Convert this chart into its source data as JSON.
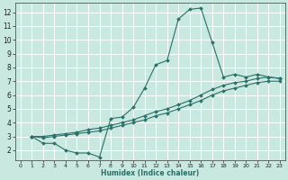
{
  "xlabel": "Humidex (Indice chaleur)",
  "bg_color": "#c8e8e0",
  "grid_color": "#ffffff",
  "line_color": "#2a7068",
  "xlim": [
    -0.5,
    23.5
  ],
  "ylim": [
    1.3,
    12.7
  ],
  "xticks": [
    0,
    1,
    2,
    3,
    4,
    5,
    6,
    7,
    8,
    9,
    10,
    11,
    12,
    13,
    14,
    15,
    16,
    17,
    18,
    19,
    20,
    21,
    22,
    23
  ],
  "yticks": [
    2,
    3,
    4,
    5,
    6,
    7,
    8,
    9,
    10,
    11,
    12
  ],
  "curve_x": [
    1,
    2,
    3,
    4,
    5,
    6,
    7,
    8,
    9,
    10,
    11,
    12,
    13,
    14,
    15,
    16,
    17,
    18,
    19,
    20,
    21,
    22,
    23
  ],
  "curve_y": [
    3,
    2.5,
    2.5,
    2,
    1.8,
    1.8,
    1.5,
    4.3,
    4.4,
    5.1,
    6.5,
    8.2,
    8.5,
    11.5,
    12.2,
    12.3,
    9.8,
    7.3,
    7.5,
    7.3,
    7.5,
    7.3,
    7.2
  ],
  "line2_x": [
    1,
    2,
    3,
    4,
    5,
    6,
    7,
    8,
    9,
    10,
    11,
    12,
    13,
    14,
    15,
    16,
    17,
    18,
    19,
    20,
    21,
    22,
    23
  ],
  "line2_y": [
    3,
    3.0,
    3.1,
    3.2,
    3.3,
    3.5,
    3.6,
    3.8,
    4.0,
    4.2,
    4.5,
    4.8,
    5.0,
    5.3,
    5.6,
    6.0,
    6.4,
    6.7,
    6.9,
    7.0,
    7.2,
    7.3,
    7.2
  ],
  "line3_x": [
    1,
    2,
    3,
    4,
    5,
    6,
    7,
    8,
    9,
    10,
    11,
    12,
    13,
    14,
    15,
    16,
    17,
    18,
    19,
    20,
    21,
    22,
    23
  ],
  "line3_y": [
    3,
    2.9,
    3.0,
    3.1,
    3.2,
    3.3,
    3.4,
    3.6,
    3.8,
    4.0,
    4.2,
    4.5,
    4.7,
    5.0,
    5.3,
    5.6,
    6.0,
    6.3,
    6.5,
    6.7,
    6.9,
    7.0,
    7.0
  ]
}
